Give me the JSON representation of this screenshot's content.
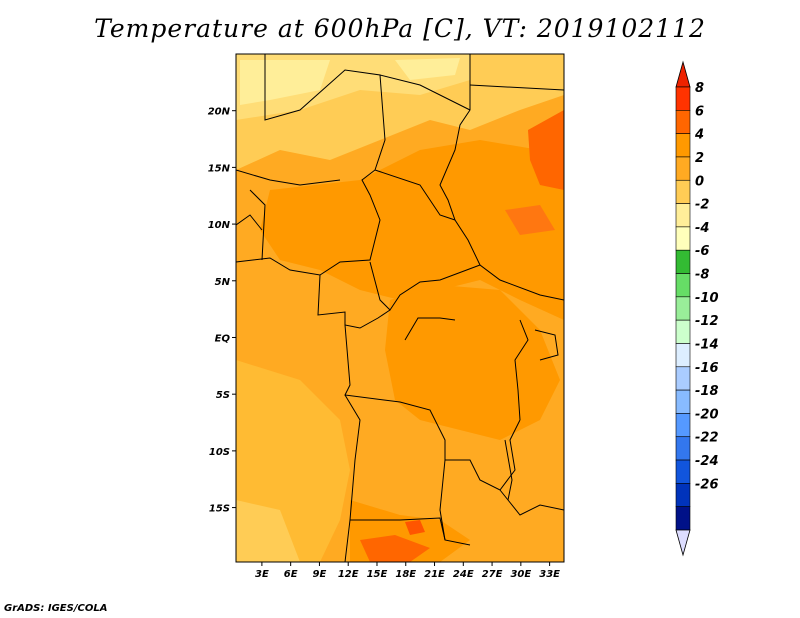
{
  "title": "Temperature at 600hPa [C], VT: 2019102112",
  "footer": "GrADS: IGES/COLA",
  "map": {
    "lat_labels": [
      "20N",
      "15N",
      "10N",
      "5N",
      "EQ",
      "5S",
      "10S",
      "15S"
    ],
    "lat_values": [
      20,
      15,
      10,
      5,
      0,
      -5,
      -10,
      -15
    ],
    "lon_labels": [
      "3E",
      "6E",
      "9E",
      "12E",
      "15E",
      "18E",
      "21E",
      "24E",
      "27E",
      "30E",
      "33E"
    ],
    "lon_values": [
      3,
      6,
      9,
      12,
      15,
      18,
      21,
      24,
      27,
      30,
      33
    ],
    "lon_range": [
      0.3,
      34.5
    ],
    "lat_range": [
      -19.8,
      25
    ]
  },
  "colorbar": {
    "labels": [
      "8",
      "6",
      "4",
      "2",
      "0",
      "-2",
      "-4",
      "-6",
      "-8",
      "-10",
      "-12",
      "-14",
      "-16",
      "-18",
      "-20",
      "-22",
      "-24",
      "-26"
    ],
    "colors": [
      "#ff3300",
      "#ff6600",
      "#ff9900",
      "#ffaa22",
      "#ffcc55",
      "#ffee99",
      "#ffffbb",
      "#33bb33",
      "#66dd66",
      "#99ee99",
      "#ccffcc",
      "#ddeeff",
      "#aaccff",
      "#88bbff",
      "#5599ff",
      "#3377ee",
      "#1155dd",
      "#0033bb",
      "#001188"
    ],
    "top_arrow_color": "#ee2200",
    "bottom_arrow_color": "#ddddff"
  }
}
